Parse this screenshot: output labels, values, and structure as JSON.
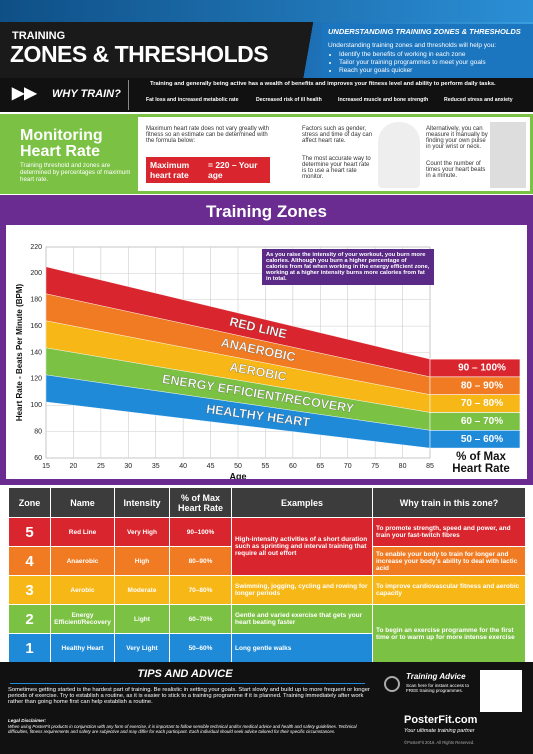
{
  "header": {
    "kicker": "TRAINING",
    "title": "ZONES & THRESHOLDS",
    "info_title": "UNDERSTANDING TRAINING ZONES & THRESHOLDS",
    "info_intro": "Understanding training zones and thresholds will help you:",
    "info_bullets": [
      "Identify the benefits of working in each zone",
      "Tailor your training programmes to meet your goals",
      "Reach your goals quicker"
    ]
  },
  "why_train": {
    "title": "WHY TRAIN?",
    "text": "Training and generally being active has a wealth of benefits and improves your fitness level and ability to perform daily tasks.",
    "benefits": [
      "Fat loss and increased metabolic rate",
      "Decreased risk of ill health",
      "Increased muscle and bone strength",
      "Reduced stress and anxiety"
    ]
  },
  "monitoring": {
    "title": "Monitoring Heart Rate",
    "subtitle": "Training threshold and zones are determined by percentages of maximum heart rate.",
    "estimate_text": "Maximum heart rate does not vary greatly with fitness so an estimate can be determined with the formula below:",
    "formula_left": "Maximum heart rate",
    "formula_right": "= 220 – Your age",
    "factors_text": "Factors such as gender, stress and time of day can affect heart rate.",
    "monitor_text": "The most accurate way to determine your heart rate is to use a heart rate monitor.",
    "manual_text": "Alternatively, you can measure it manually by finding your own pulse in your wrist or neck.",
    "count_text": "Count the number of times your heart beats in a minute."
  },
  "training_zones": {
    "title": "Training Zones",
    "chart": {
      "type": "area",
      "ylabel": "Heart Rate - Beats Per Minute (BPM)",
      "xlabel": "Age",
      "annotation": "As you raise the intensity of your workout, you burn more calories. Although you burn a higher percentage of calories from fat when working in the energy efficient zone, working at a higher intensity burns more calories from fat in total.",
      "legend_title": "% of Max Heart Rate",
      "xlim": [
        15,
        85
      ],
      "xticks": [
        15,
        20,
        25,
        30,
        35,
        40,
        45,
        50,
        55,
        60,
        65,
        70,
        75,
        80,
        85
      ],
      "ylim": [
        60,
        220
      ],
      "yticks": [
        60,
        80,
        100,
        120,
        140,
        160,
        180,
        200,
        220
      ],
      "grid": true,
      "x": [
        15,
        85
      ],
      "series": [
        {
          "name": "RED LINE",
          "range_label": "90 – 100%",
          "color": "#d9262e",
          "upper": [
            205,
            135
          ],
          "lower": [
            184.5,
            121.5
          ]
        },
        {
          "name": "ANAEROBIC",
          "range_label": "80 – 90%",
          "color": "#f07b22",
          "upper": [
            184.5,
            121.5
          ],
          "lower": [
            164,
            108
          ]
        },
        {
          "name": "AEROBIC",
          "range_label": "70 – 80%",
          "color": "#f6b717",
          "upper": [
            164,
            108
          ],
          "lower": [
            143.5,
            94.5
          ]
        },
        {
          "name": "ENERGY EFFICIENT/RECOVERY",
          "range_label": "60 – 70%",
          "color": "#7bc143",
          "upper": [
            143.5,
            94.5
          ],
          "lower": [
            123,
            81
          ]
        },
        {
          "name": "HEALTHY HEART",
          "range_label": "50 – 60%",
          "color": "#1f8ad8",
          "upper": [
            123,
            81
          ],
          "lower": [
            102.5,
            67.5
          ]
        }
      ]
    }
  },
  "table": {
    "headers": [
      "Zone",
      "Name",
      "Intensity",
      "% of Max Heart Rate",
      "Examples",
      "Why train in this zone?"
    ],
    "rows": [
      [
        "5",
        "Red Line",
        "Very High",
        "90–100%"
      ],
      [
        "4",
        "Anaerobic",
        "High",
        "80–90%"
      ],
      [
        "3",
        "Aerobic",
        "Moderate",
        "70–80%"
      ],
      [
        "2",
        "Energy Efficient/Recovery",
        "Light",
        "60–70%"
      ],
      [
        "1",
        "Healthy Heart",
        "Very Light",
        "50–60%"
      ]
    ],
    "examples": [
      "High-intensity activities of a short duration such as sprinting and interval training that require all out effort",
      "Swimming, jogging, cycling and rowing for longer periods",
      "Gentle and varied exercise that gets your heart beating faster",
      "Long gentle walks"
    ],
    "why": [
      "To promote strength, speed and power, and train your fast-twitch fibres",
      "To enable your body to train for longer and increase your body's ability to deal with lactic acid",
      "To improve cardiovascular fitness and aerobic capacity",
      "To begin an exercise programme for the first time or to warm up for more intense exercise"
    ]
  },
  "tips": {
    "title": "TIPS AND ADVICE",
    "text": "Sometimes getting started is the hardest part of training. Be realistic in setting your goals. Start slowly and build up to more frequent or longer periods of exercise. Try to establish a routine, as it is easier to stick to a training programme if it is planned. Training immediately after work rather than going home first can help establish a routine.",
    "disclaimer_title": "Legal Disclaimer:",
    "disclaimer": "When using PosterFit products in conjunction with any form of exercise, it is important to follow sensible technical and/or medical advice and health and safety guidelines. Technical difficulties, fitness requirements and safety are subjective and may differ for each participant. Each individual should seek advice tailored for their specific circumstances."
  },
  "footer": {
    "advice_title": "Training Advice",
    "advice_text": "Scan here for instant access to FREE training programmes.",
    "brand": "PosterFit.com",
    "tagline": "Your ultimate training partner",
    "copyright": "©PosterFit 2016. All Rights Reserved."
  }
}
